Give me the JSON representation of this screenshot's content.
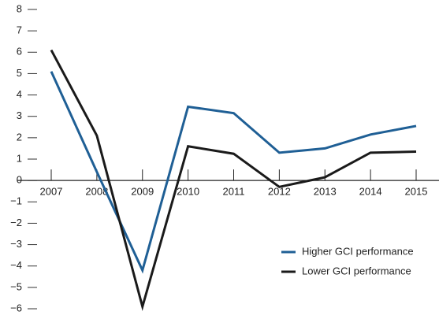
{
  "chart_data": {
    "type": "line",
    "x": [
      2007,
      2008,
      2009,
      2010,
      2011,
      2012,
      2013,
      2014,
      2015
    ],
    "xlim": [
      2007,
      2015
    ],
    "xticks": [
      2007,
      2008,
      2009,
      2010,
      2011,
      2012,
      2013,
      2014,
      2015
    ],
    "series": [
      {
        "name": "Higher GCI performance",
        "color": "#1f5f95",
        "values": [
          5.1,
          0.4,
          -4.2,
          3.45,
          3.15,
          1.3,
          1.5,
          2.15,
          2.55
        ]
      },
      {
        "name": "Lower GCI performance",
        "color": "#1a1a1a",
        "values": [
          6.1,
          2.1,
          -5.9,
          1.6,
          1.25,
          -0.3,
          0.15,
          1.3,
          1.35
        ]
      }
    ],
    "ylim": [
      -6,
      8
    ],
    "yticks": [
      {
        "value": -6,
        "label": "−6"
      },
      {
        "value": -5,
        "label": "−5"
      },
      {
        "value": -4,
        "label": "−4"
      },
      {
        "value": -3,
        "label": "−3"
      },
      {
        "value": -2,
        "label": "−2"
      },
      {
        "value": -1,
        "label": "−1"
      },
      0,
      1,
      2,
      3,
      4,
      5,
      6,
      7,
      8
    ],
    "legend": "lower right"
  }
}
